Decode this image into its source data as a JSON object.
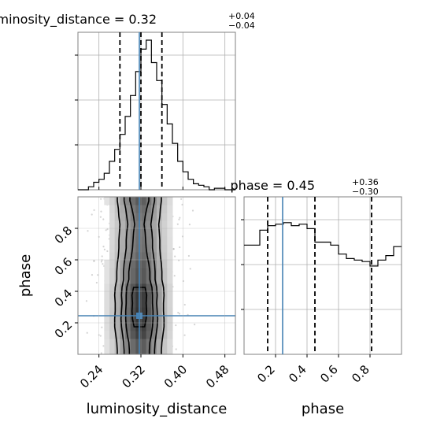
{
  "chart_data": [
    {
      "type": "histogram",
      "panel": "marginal-luminosity-distance",
      "title": {
        "main": "luminosity_distance = 0.32",
        "sup": "+0.04",
        "sub": "−0.04"
      },
      "xlim": [
        0.2,
        0.5
      ],
      "ylim": [
        0,
        1.0
      ],
      "bin_edges": [
        0.2,
        0.21,
        0.22,
        0.23,
        0.24,
        0.25,
        0.26,
        0.27,
        0.28,
        0.29,
        0.3,
        0.31,
        0.32,
        0.33,
        0.34,
        0.35,
        0.36,
        0.37,
        0.38,
        0.39,
        0.4,
        0.41,
        0.42,
        0.43,
        0.44,
        0.45,
        0.46,
        0.47,
        0.48,
        0.49,
        0.5
      ],
      "counts": [
        0.0,
        0.0,
        0.02,
        0.05,
        0.07,
        0.11,
        0.19,
        0.27,
        0.37,
        0.49,
        0.63,
        0.79,
        0.94,
        1.0,
        0.85,
        0.73,
        0.57,
        0.44,
        0.31,
        0.19,
        0.12,
        0.07,
        0.04,
        0.03,
        0.02,
        0.0,
        0.01,
        0.01,
        0.0,
        0.0
      ],
      "quantile_lines": [
        0.28,
        0.32,
        0.36
      ],
      "truth": 0.317,
      "yticks": [
        0.3,
        0.6,
        0.9
      ],
      "grid": true
    },
    {
      "type": "histogram",
      "panel": "marginal-phase",
      "title": {
        "main": "phase = 0.45",
        "sup": "+0.36",
        "sub": "−0.30"
      },
      "xlim": [
        0.0,
        1.0
      ],
      "xticks": [
        "0.2",
        "0.4",
        "0.6",
        "0.8"
      ],
      "xtick_values": [
        0.2,
        0.4,
        0.6,
        0.8
      ],
      "xlabel": "phase",
      "ylim": [
        0,
        1.0
      ],
      "bin_edges": [
        0.0,
        0.05,
        0.1,
        0.15,
        0.2,
        0.25,
        0.3,
        0.35,
        0.4,
        0.45,
        0.5,
        0.55,
        0.6,
        0.65,
        0.7,
        0.75,
        0.8,
        0.85,
        0.9,
        0.95,
        1.0
      ],
      "counts": [
        0.73,
        0.73,
        0.83,
        0.86,
        0.87,
        0.88,
        0.86,
        0.87,
        0.84,
        0.75,
        0.75,
        0.73,
        0.67,
        0.64,
        0.63,
        0.62,
        0.59,
        0.63,
        0.66,
        0.72
      ],
      "quantile_lines": [
        0.15,
        0.45,
        0.81
      ],
      "truth": 0.245,
      "yticks": [
        0.3,
        0.6,
        0.9
      ],
      "grid": true
    },
    {
      "type": "heatmap",
      "panel": "joint-luminosity-distance-phase",
      "xlabel": "luminosity_distance",
      "ylabel": "phase",
      "xlim": [
        0.2,
        0.5
      ],
      "ylim": [
        0.0,
        1.0
      ],
      "xticks": [
        "0.24",
        "0.32",
        "0.40",
        "0.48"
      ],
      "xtick_values": [
        0.24,
        0.32,
        0.4,
        0.48
      ],
      "yticks": [
        "0.2",
        "0.4",
        "0.6",
        "0.8"
      ],
      "ytick_values": [
        0.2,
        0.4,
        0.6,
        0.8
      ],
      "x_centers": [
        0.205,
        0.215,
        0.225,
        0.235,
        0.245,
        0.255,
        0.265,
        0.275,
        0.285,
        0.295,
        0.305,
        0.315,
        0.325,
        0.335,
        0.345,
        0.355,
        0.365,
        0.375,
        0.385,
        0.395,
        0.405,
        0.415
      ],
      "x_profile": [
        0.01,
        0.02,
        0.03,
        0.06,
        0.1,
        0.17,
        0.27,
        0.4,
        0.56,
        0.72,
        0.88,
        1.0,
        0.97,
        0.83,
        0.66,
        0.49,
        0.34,
        0.22,
        0.13,
        0.07,
        0.04,
        0.02
      ],
      "y_centers": [
        0.025,
        0.075,
        0.125,
        0.175,
        0.225,
        0.275,
        0.325,
        0.375,
        0.425,
        0.475,
        0.525,
        0.575,
        0.625,
        0.675,
        0.725,
        0.775,
        0.825,
        0.875,
        0.925,
        0.975
      ],
      "y_profile": [
        0.73,
        0.73,
        0.83,
        0.86,
        0.87,
        0.88,
        0.86,
        0.87,
        0.84,
        0.75,
        0.75,
        0.73,
        0.67,
        0.64,
        0.63,
        0.62,
        0.59,
        0.63,
        0.66,
        0.72
      ],
      "contour_levels": [
        {
          "level": 1,
          "half_widths": [
            0.042,
            0.043,
            0.045,
            0.047,
            0.047,
            0.046,
            0.046,
            0.047,
            0.046,
            0.043,
            0.043,
            0.042,
            0.04,
            0.039,
            0.039,
            0.038,
            0.037,
            0.039,
            0.04,
            0.042
          ]
        },
        {
          "level": 2,
          "half_widths": [
            0.029,
            0.03,
            0.032,
            0.034,
            0.035,
            0.034,
            0.033,
            0.034,
            0.033,
            0.03,
            0.03,
            0.029,
            0.027,
            0.025,
            0.025,
            0.024,
            0.022,
            0.024,
            0.026,
            0.029
          ]
        },
        {
          "level": 3,
          "half_widths": [
            0.019,
            0.02,
            0.023,
            0.025,
            0.026,
            0.026,
            0.025,
            0.025,
            0.024,
            0.02,
            0.02,
            0.018,
            0.015,
            0.013,
            0.012,
            0.011,
            0.009,
            0.011,
            0.014,
            0.018
          ]
        },
        {
          "level": 4,
          "half_widths": [
            0.0,
            0.0,
            0.0,
            0.01,
            0.013,
            0.014,
            0.013,
            0.014,
            0.011,
            0.0,
            0.0,
            0.0,
            0.0,
            0.0,
            0.0,
            0.0,
            0.0,
            0.0,
            0.0,
            0.0
          ]
        }
      ],
      "truth": {
        "x": 0.317,
        "y": 0.245
      }
    }
  ],
  "colors": {
    "truth": "#4682b4",
    "grid": "#b0b0b0",
    "line": "#000000",
    "scatter": "#a0a0a0"
  }
}
